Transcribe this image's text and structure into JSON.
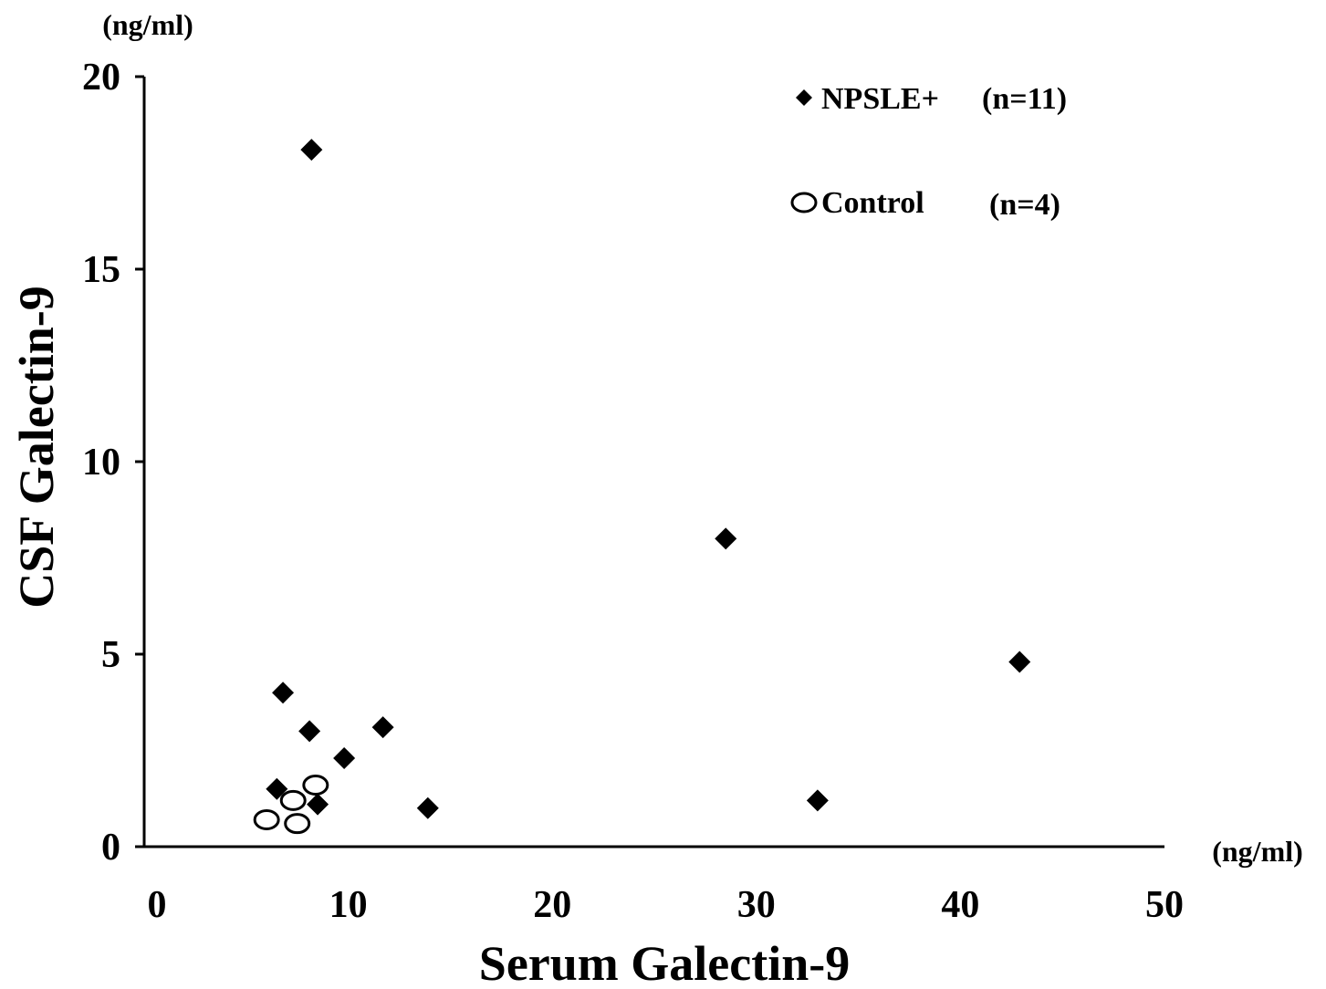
{
  "chart_data": {
    "type": "scatter",
    "xlabel": "Serum Galectin-9",
    "ylabel": "CSF Galectin-9",
    "x_unit": "(ng/ml)",
    "y_unit": "(ng/ml)",
    "xlim": [
      0,
      50
    ],
    "ylim": [
      0,
      20
    ],
    "x_ticks": [
      "0",
      "10",
      "20",
      "30",
      "40",
      "50"
    ],
    "y_ticks": [
      "0",
      "5",
      "10",
      "15",
      "20"
    ],
    "grid": false,
    "legend_position": "top-right",
    "series": [
      {
        "name": "NPSLE+",
        "count_label": "(n=11)",
        "marker": "diamond-filled",
        "color": "#000000",
        "points": [
          {
            "x": 8.2,
            "y": 18.1
          },
          {
            "x": 6.8,
            "y": 4.0
          },
          {
            "x": 8.1,
            "y": 3.0
          },
          {
            "x": 11.7,
            "y": 3.1
          },
          {
            "x": 9.8,
            "y": 2.3
          },
          {
            "x": 6.5,
            "y": 1.5
          },
          {
            "x": 8.5,
            "y": 1.1
          },
          {
            "x": 13.9,
            "y": 1.0
          },
          {
            "x": 28.5,
            "y": 8.0
          },
          {
            "x": 42.9,
            "y": 4.8
          },
          {
            "x": 33.0,
            "y": 1.2
          }
        ]
      },
      {
        "name": "Control",
        "count_label": "(n=4)",
        "marker": "circle-open",
        "color": "#000000",
        "points": [
          {
            "x": 6.0,
            "y": 0.7
          },
          {
            "x": 7.5,
            "y": 0.6
          },
          {
            "x": 7.3,
            "y": 1.2
          },
          {
            "x": 8.4,
            "y": 1.6
          }
        ]
      }
    ]
  }
}
